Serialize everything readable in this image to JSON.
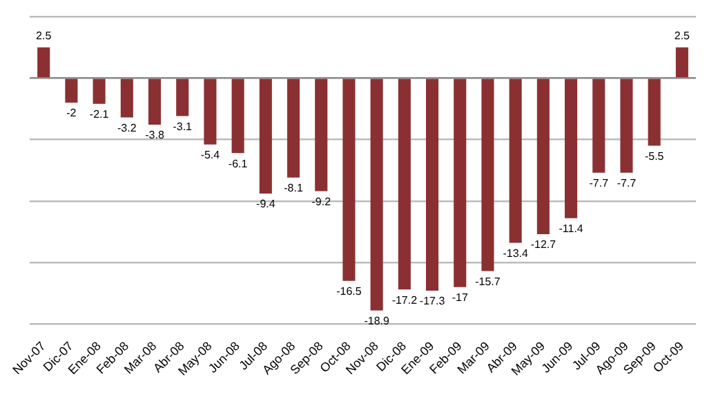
{
  "chart_data": {
    "type": "bar",
    "categories": [
      "Nov-07",
      "Dic-07",
      "Ene-08",
      "Feb-08",
      "Mar-08",
      "Abr-08",
      "May-08",
      "Jun-08",
      "Jul-08",
      "Ago-08",
      "Sep-08",
      "Oct-08",
      "Nov-08",
      "Dic-08",
      "Ene-09",
      "Feb-09",
      "Mar-09",
      "Abr-09",
      "May-09",
      "Jun-09",
      "Jul-09",
      "Ago-09",
      "Sep-09",
      "Oct-09"
    ],
    "values": [
      2.5,
      -2,
      -2.1,
      -3.2,
      -3.8,
      -3.1,
      -5.4,
      -6.1,
      -9.4,
      -8.1,
      -9.2,
      -16.5,
      -18.9,
      -17.2,
      -17.3,
      -17,
      -15.7,
      -13.4,
      -12.7,
      -11.4,
      -7.7,
      -7.7,
      -5.5,
      2.5
    ],
    "color": "#8b3032",
    "data_labels": true,
    "ylim": [
      -20,
      5
    ],
    "grid": "y",
    "tick_labels": "x",
    "legend": false
  }
}
